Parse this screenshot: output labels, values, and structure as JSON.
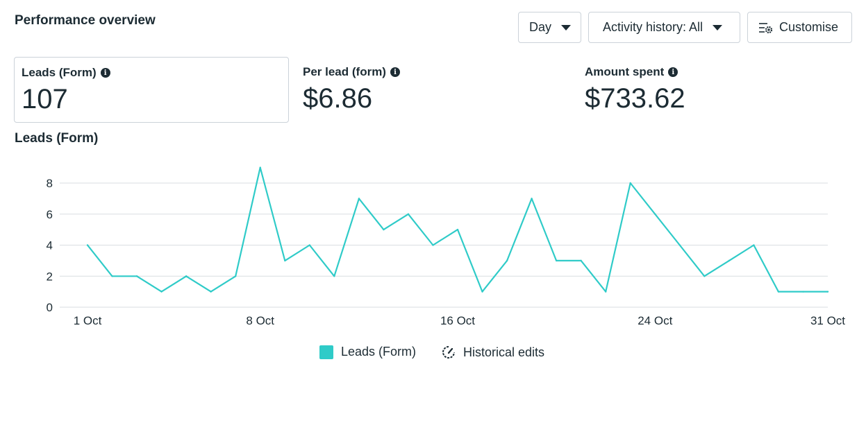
{
  "header": {
    "title": "Performance overview",
    "day_label": "Day",
    "activity_label": "Activity history: All",
    "customise_label": "Customise"
  },
  "metrics": [
    {
      "label": "Leads (Form)",
      "value": "107"
    },
    {
      "label": "Per lead (form)",
      "value": "$6.86"
    },
    {
      "label": "Amount spent",
      "value": "$733.62"
    }
  ],
  "chart_title": "Leads (Form)",
  "legend": {
    "leads_label": "Leads (Form)",
    "historical_label": "Historical edits"
  },
  "colors": {
    "series": "#2fcbc8",
    "grid": "#d9dde1",
    "text": "#1c2b33"
  },
  "icons": {
    "caret": "chevron-down-icon",
    "customise": "sliders-gear-icon",
    "info": "info-icon",
    "historical": "gauge-icon"
  },
  "chart_data": {
    "type": "line",
    "title": "Leads (Form)",
    "xlabel": "",
    "ylabel": "",
    "ylim": [
      0,
      9
    ],
    "yticks": [
      0,
      2,
      4,
      6,
      8
    ],
    "x_tick_labels": [
      "1 Oct",
      "8 Oct",
      "16 Oct",
      "24 Oct",
      "31 Oct"
    ],
    "x_tick_days": [
      1,
      8,
      16,
      24,
      31
    ],
    "x": [
      1,
      2,
      3,
      4,
      5,
      6,
      7,
      8,
      9,
      10,
      11,
      12,
      13,
      14,
      15,
      16,
      17,
      18,
      19,
      20,
      21,
      22,
      23,
      24,
      25,
      26,
      27,
      28,
      29,
      30,
      31
    ],
    "series": [
      {
        "name": "Leads (Form)",
        "values": [
          4,
          2,
          2,
          1,
          2,
          1,
          2,
          9,
          3,
          4,
          2,
          7,
          5,
          6,
          4,
          5,
          1,
          3,
          7,
          3,
          3,
          1,
          8,
          6,
          4,
          2,
          3,
          4,
          1,
          1,
          1
        ]
      }
    ],
    "grid": true,
    "legend_position": "bottom-center"
  }
}
